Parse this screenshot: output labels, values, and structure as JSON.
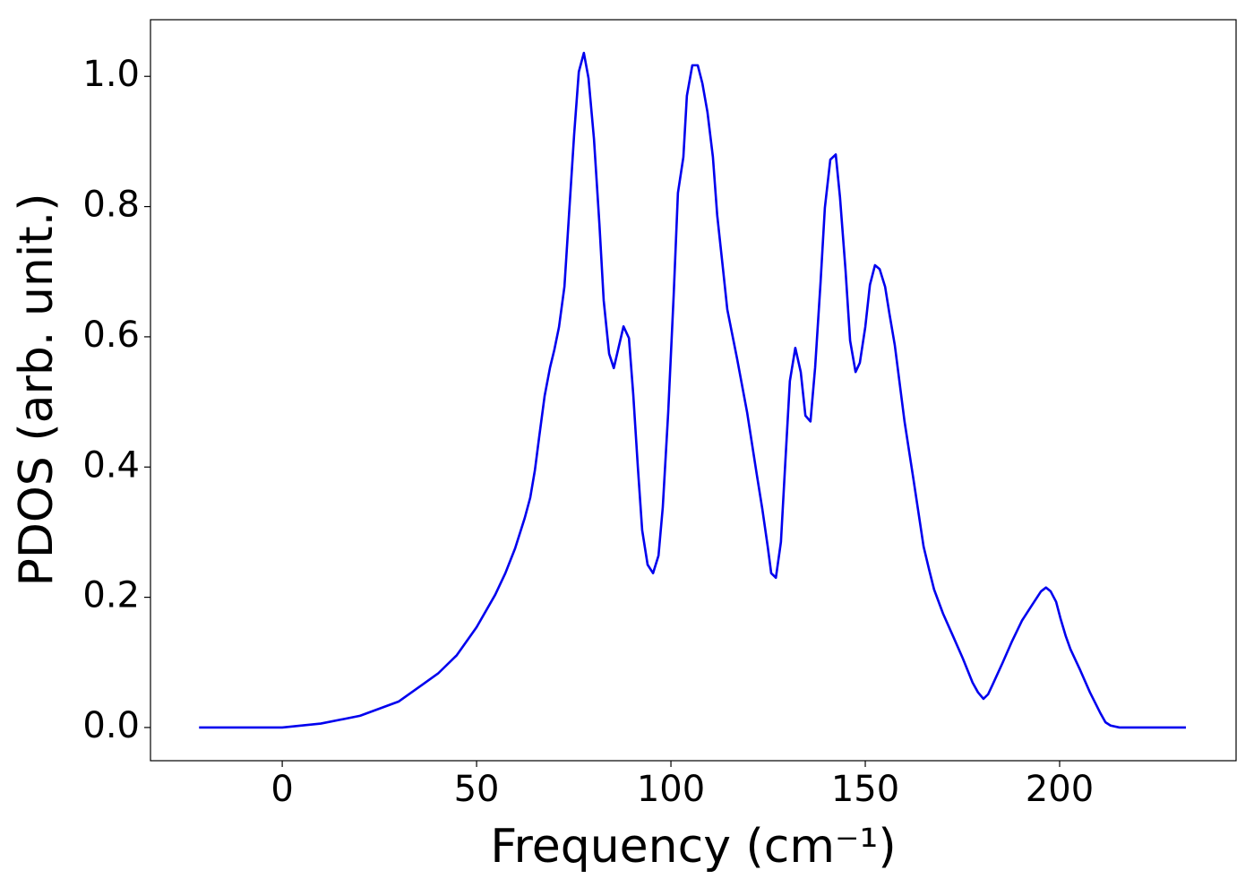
{
  "chart_data": {
    "type": "line",
    "xlabel": "Frequency (cm⁻¹)",
    "ylabel": "PDOS (arb. unit.)",
    "x": [
      -21.4,
      0,
      9.9,
      20,
      30,
      40.1,
      44.9,
      50,
      54.8,
      57.4,
      59.9,
      62.4,
      63.8,
      65,
      66.1,
      67.5,
      68.9,
      70,
      71.2,
      72.6,
      73.7,
      75.1,
      76.3,
      77.6,
      78.8,
      80.2,
      81.6,
      82.7,
      84.1,
      85.3,
      87.8,
      89.2,
      90.3,
      91.5,
      92.6,
      94,
      95.4,
      96.8,
      97.9,
      99.3,
      100.7,
      101.8,
      103.2,
      104.1,
      105.5,
      106.9,
      108.1,
      109.4,
      110.8,
      111.9,
      113.4,
      114.5,
      117,
      119.6,
      122.1,
      123.5,
      124.9,
      125.8,
      127,
      128.3,
      129.5,
      130.6,
      132,
      133.4,
      134.6,
      135.9,
      137.1,
      138.5,
      139.6,
      141,
      142.4,
      143.5,
      144.9,
      146.1,
      147.5,
      148.6,
      150,
      151.2,
      152.5,
      153.7,
      155.1,
      156.2,
      157.6,
      160.1,
      162.4,
      165,
      166.4,
      167.7,
      170,
      172.6,
      175.1,
      177.6,
      179,
      180.4,
      181.6,
      182.7,
      185.3,
      187.8,
      190.3,
      192.9,
      195.2,
      196.5,
      197.7,
      199.1,
      200.2,
      201.6,
      202.8,
      205.3,
      207.8,
      210.4,
      211.8,
      213.1,
      215.4,
      232.5
    ],
    "series": [
      {
        "color": "#0000ee",
        "values": [
          0,
          0,
          0.006,
          0.018,
          0.04,
          0.083,
          0.111,
          0.154,
          0.204,
          0.237,
          0.275,
          0.322,
          0.353,
          0.395,
          0.446,
          0.509,
          0.553,
          0.58,
          0.615,
          0.677,
          0.78,
          0.911,
          1.007,
          1.036,
          0.997,
          0.904,
          0.773,
          0.656,
          0.574,
          0.552,
          0.616,
          0.598,
          0.512,
          0.399,
          0.303,
          0.25,
          0.237,
          0.264,
          0.338,
          0.484,
          0.663,
          0.821,
          0.876,
          0.97,
          1.017,
          1.017,
          0.989,
          0.945,
          0.876,
          0.787,
          0.704,
          0.642,
          0.567,
          0.484,
          0.388,
          0.336,
          0.278,
          0.237,
          0.23,
          0.285,
          0.415,
          0.532,
          0.583,
          0.546,
          0.479,
          0.47,
          0.553,
          0.684,
          0.798,
          0.872,
          0.88,
          0.814,
          0.704,
          0.594,
          0.546,
          0.56,
          0.615,
          0.68,
          0.71,
          0.704,
          0.677,
          0.636,
          0.587,
          0.47,
          0.381,
          0.278,
          0.243,
          0.212,
          0.175,
          0.14,
          0.106,
          0.069,
          0.054,
          0.044,
          0.051,
          0.065,
          0.099,
          0.133,
          0.164,
          0.188,
          0.209,
          0.215,
          0.209,
          0.193,
          0.168,
          0.14,
          0.12,
          0.088,
          0.054,
          0.023,
          0.008,
          0.003,
          0,
          0
        ]
      }
    ],
    "xlim": [
      -33.9,
      245.4
    ],
    "ylim": [
      -0.051,
      1.087
    ],
    "xticks": [
      0,
      50,
      100,
      150,
      200
    ],
    "yticks": [
      {
        "value": 0,
        "label": "0.0"
      },
      0.2,
      0.4,
      0.6,
      0.8,
      {
        "value": 1,
        "label": "1.0"
      }
    ]
  }
}
